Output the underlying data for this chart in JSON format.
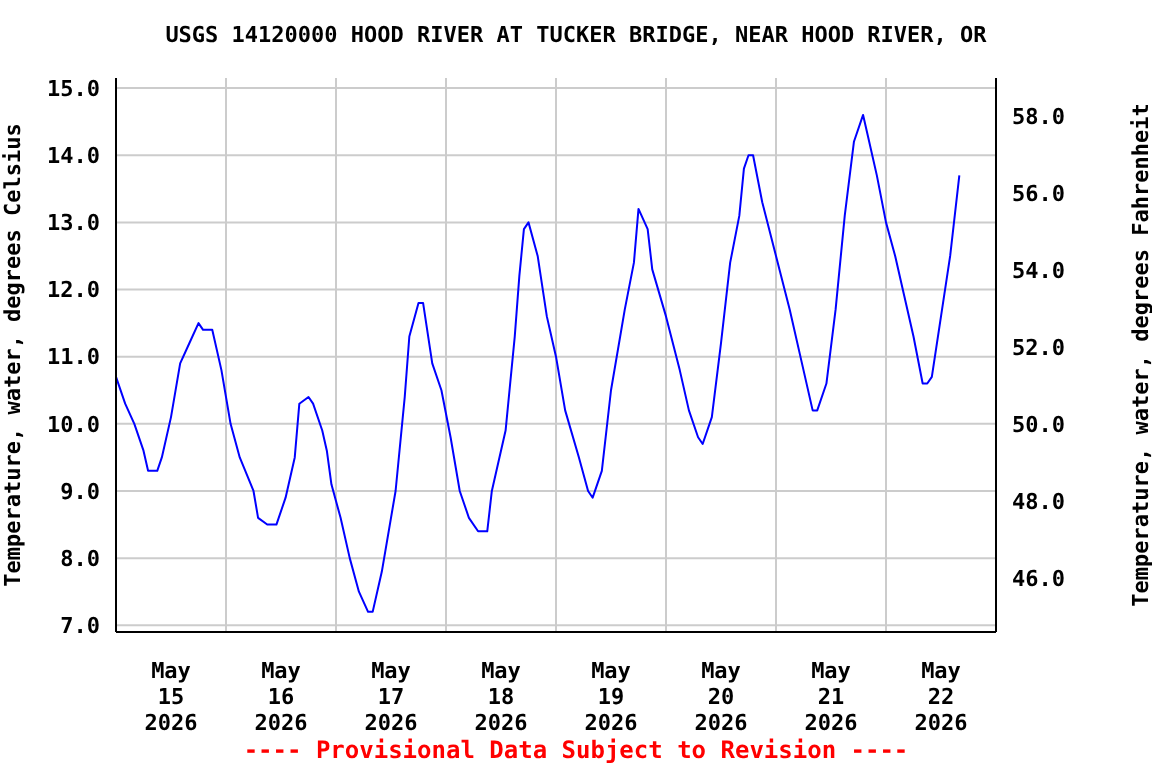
{
  "chart_data": {
    "type": "line",
    "title": "USGS 14120000 HOOD RIVER AT TUCKER BRIDGE, NEAR HOOD RIVER, OR",
    "ylabel": "Temperature, water, degrees Celsius",
    "y2label": "Temperature, water, degrees Fahrenheit",
    "annotations": [
      "---- Provisional Data Subject to Revision ----"
    ],
    "x": [
      "2026-05-15T00:00",
      "2026-05-15T02:00",
      "2026-05-15T04:00",
      "2026-05-15T06:00",
      "2026-05-15T07:00",
      "2026-05-15T09:00",
      "2026-05-15T10:00",
      "2026-05-15T12:00",
      "2026-05-15T14:00",
      "2026-05-15T16:00",
      "2026-05-15T18:00",
      "2026-05-15T19:00",
      "2026-05-15T21:00",
      "2026-05-15T23:00",
      "2026-05-16T01:00",
      "2026-05-16T03:00",
      "2026-05-16T06:00",
      "2026-05-16T07:00",
      "2026-05-16T09:00",
      "2026-05-16T11:00",
      "2026-05-16T13:00",
      "2026-05-16T15:00",
      "2026-05-16T16:00",
      "2026-05-16T18:00",
      "2026-05-16T19:00",
      "2026-05-16T21:00",
      "2026-05-16T22:00",
      "2026-05-16T23:00",
      "2026-05-17T01:00",
      "2026-05-17T03:00",
      "2026-05-17T05:00",
      "2026-05-17T07:00",
      "2026-05-17T08:00",
      "2026-05-17T10:00",
      "2026-05-17T13:00",
      "2026-05-17T15:00",
      "2026-05-17T16:00",
      "2026-05-17T18:00",
      "2026-05-17T19:00",
      "2026-05-17T21:00",
      "2026-05-17T23:00",
      "2026-05-18T01:00",
      "2026-05-18T03:00",
      "2026-05-18T05:00",
      "2026-05-18T07:00",
      "2026-05-18T09:00",
      "2026-05-18T10:00",
      "2026-05-18T13:00",
      "2026-05-18T15:00",
      "2026-05-18T16:00",
      "2026-05-18T17:00",
      "2026-05-18T18:00",
      "2026-05-18T20:00",
      "2026-05-18T22:00",
      "2026-05-19T00:00",
      "2026-05-19T02:00",
      "2026-05-19T05:00",
      "2026-05-19T07:00",
      "2026-05-19T08:00",
      "2026-05-19T10:00",
      "2026-05-19T12:00",
      "2026-05-19T15:00",
      "2026-05-19T17:00",
      "2026-05-19T18:00",
      "2026-05-19T20:00",
      "2026-05-19T21:00",
      "2026-05-20T00:00",
      "2026-05-20T03:00",
      "2026-05-20T05:00",
      "2026-05-20T07:00",
      "2026-05-20T08:00",
      "2026-05-20T10:00",
      "2026-05-20T12:00",
      "2026-05-20T14:00",
      "2026-05-20T16:00",
      "2026-05-20T17:00",
      "2026-05-20T18:00",
      "2026-05-20T19:00",
      "2026-05-20T21:00",
      "2026-05-21T00:00",
      "2026-05-21T03:00",
      "2026-05-21T06:00",
      "2026-05-21T08:00",
      "2026-05-21T09:00",
      "2026-05-21T11:00",
      "2026-05-21T13:00",
      "2026-05-21T15:00",
      "2026-05-21T17:00",
      "2026-05-21T19:00",
      "2026-05-21T20:00",
      "2026-05-21T22:00",
      "2026-05-22T00:00",
      "2026-05-22T02:00",
      "2026-05-22T04:00",
      "2026-05-22T06:00",
      "2026-05-22T08:00",
      "2026-05-22T09:00",
      "2026-05-22T10:00",
      "2026-05-22T12:00",
      "2026-05-22T14:00",
      "2026-05-22T16:00"
    ],
    "series": [
      {
        "color": "#0000ff",
        "values": [
          10.7,
          10.3,
          10.0,
          9.6,
          9.3,
          9.3,
          9.5,
          10.1,
          10.9,
          11.2,
          11.5,
          11.4,
          11.4,
          10.8,
          10.0,
          9.5,
          9.0,
          8.6,
          8.5,
          8.5,
          8.9,
          9.5,
          10.3,
          10.4,
          10.3,
          9.9,
          9.6,
          9.1,
          8.6,
          8.0,
          7.5,
          7.2,
          7.2,
          7.8,
          9.0,
          10.4,
          11.3,
          11.8,
          11.8,
          10.9,
          10.5,
          9.8,
          9.0,
          8.6,
          8.4,
          8.4,
          9.0,
          9.9,
          11.3,
          12.2,
          12.9,
          13.0,
          12.5,
          11.6,
          11.0,
          10.2,
          9.5,
          9.0,
          8.9,
          9.3,
          10.5,
          11.7,
          12.4,
          13.2,
          12.9,
          12.3,
          11.6,
          10.8,
          10.2,
          9.8,
          9.7,
          10.1,
          11.2,
          12.4,
          13.1,
          13.8,
          14.0,
          14.0,
          13.3,
          12.5,
          11.7,
          10.8,
          10.2,
          10.2,
          10.6,
          11.7,
          13.1,
          14.2,
          14.6,
          14.3,
          13.7,
          13.0,
          12.5,
          11.9,
          11.3,
          10.6,
          10.6,
          10.7,
          11.6,
          12.5,
          13.7
        ]
      }
    ],
    "xlim": [
      "2026-05-15T00:00",
      "2026-05-23T00:00"
    ],
    "xticks": [
      {
        "value": "2026-05-15T12:00",
        "label": "May 15 2026"
      },
      {
        "value": "2026-05-16T00:00",
        "label": null
      },
      {
        "value": "2026-05-16T12:00",
        "label": "May 16 2026"
      },
      {
        "value": "2026-05-17T00:00",
        "label": null
      },
      {
        "value": "2026-05-17T12:00",
        "label": "May 17 2026"
      },
      {
        "value": "2026-05-18T00:00",
        "label": null
      },
      {
        "value": "2026-05-18T12:00",
        "label": "May 18 2026"
      },
      {
        "value": "2026-05-19T00:00",
        "label": null
      },
      {
        "value": "2026-05-19T12:00",
        "label": "May 19 2026"
      },
      {
        "value": "2026-05-20T00:00",
        "label": null
      },
      {
        "value": "2026-05-20T12:00",
        "label": "May 20 2026"
      },
      {
        "value": "2026-05-21T00:00",
        "label": null
      },
      {
        "value": "2026-05-21T12:00",
        "label": "May 21 2026"
      },
      {
        "value": "2026-05-22T00:00",
        "label": null
      },
      {
        "value": "2026-05-22T12:00",
        "label": "May 22 2026"
      }
    ],
    "ylim": [
      6.9,
      15.15
    ],
    "yticks": [
      {
        "value": 7,
        "label": "7.0"
      },
      {
        "value": 8,
        "label": "8.0"
      },
      {
        "value": 9,
        "label": "9.0"
      },
      {
        "value": 10,
        "label": "10.0"
      },
      {
        "value": 11,
        "label": "11.0"
      },
      {
        "value": 12,
        "label": "12.0"
      },
      {
        "value": 13,
        "label": "13.0"
      },
      {
        "value": 14,
        "label": "14.0"
      },
      {
        "value": 15,
        "label": "15.0"
      }
    ],
    "y2lim": [
      44.6,
      59.0
    ],
    "y2ticks": [
      {
        "value": 46,
        "label": "46.0"
      },
      {
        "value": 48,
        "label": "48.0"
      },
      {
        "value": 50,
        "label": "50.0"
      },
      {
        "value": 52,
        "label": "52.0"
      },
      {
        "value": 54,
        "label": "54.0"
      },
      {
        "value": 56,
        "label": "56.0"
      },
      {
        "value": 58,
        "label": "58.0"
      }
    ],
    "grid": true
  }
}
